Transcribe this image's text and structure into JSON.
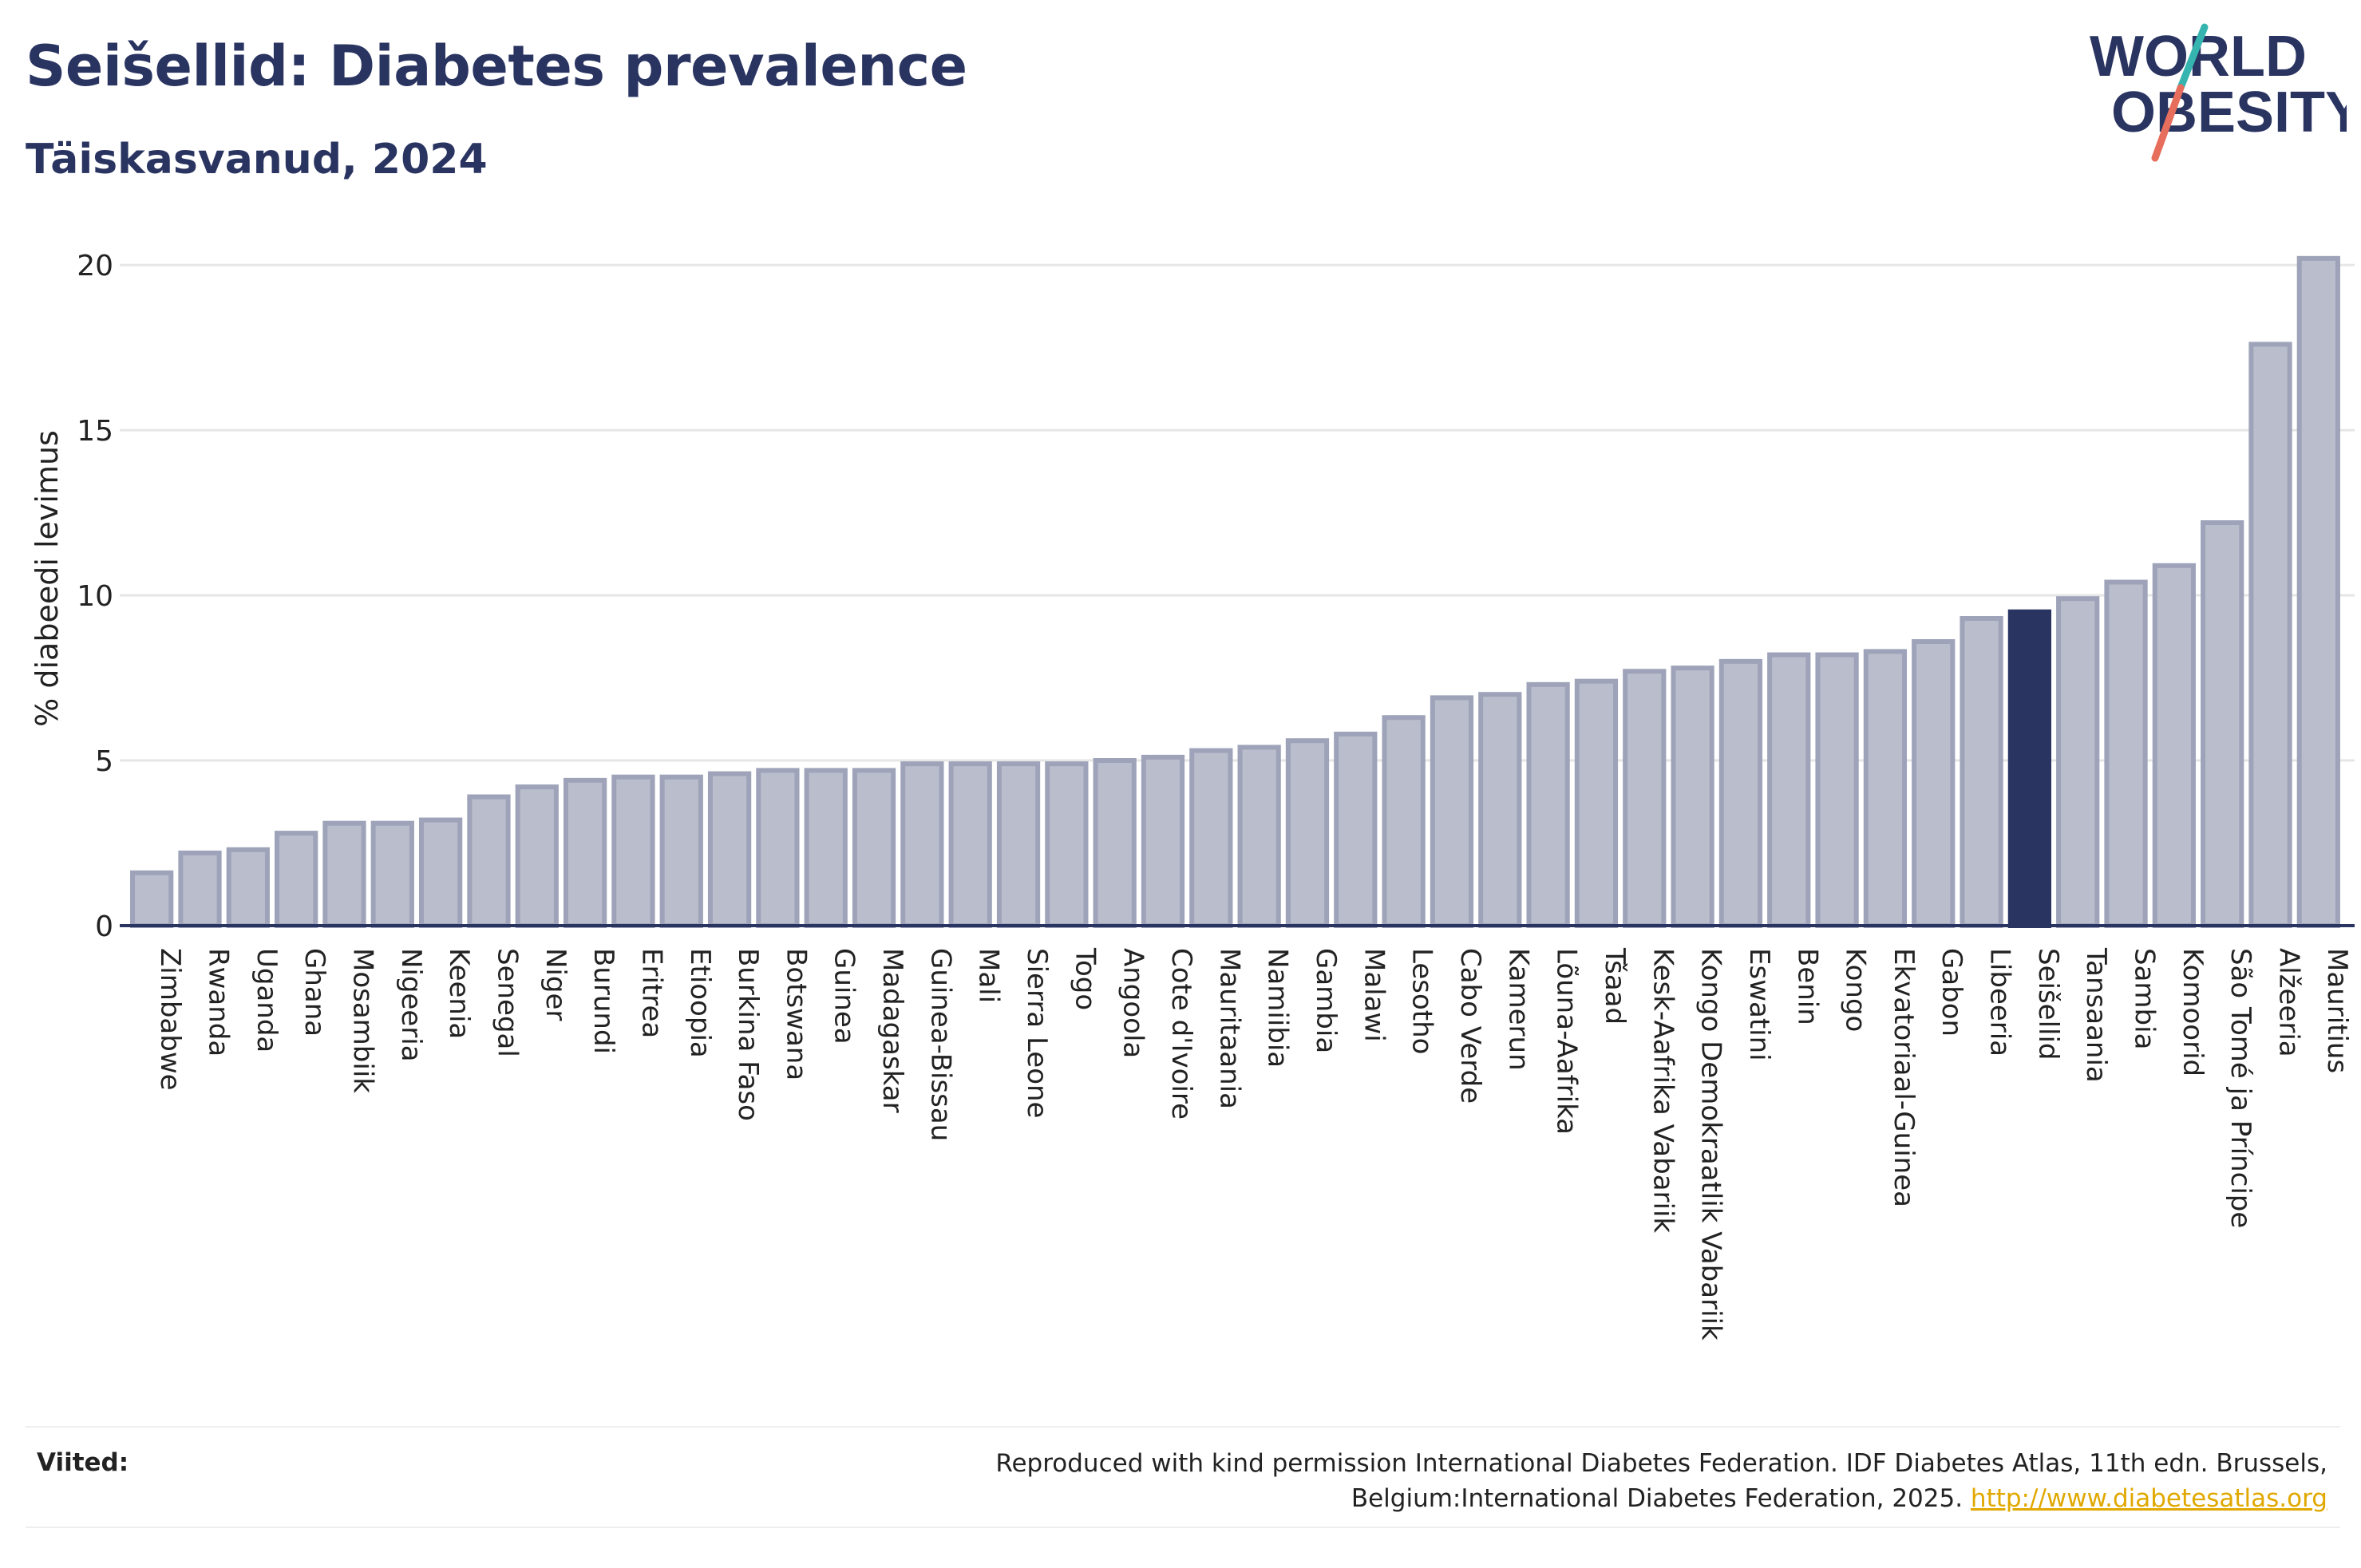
{
  "header": {
    "title": "Seišellid: Diabetes prevalence",
    "subtitle": "Täiskasvanud, 2024"
  },
  "logo": {
    "line1": "WORLD",
    "line2": "OBESITY",
    "icon": "world-obesity-logo"
  },
  "chart_data": {
    "type": "bar",
    "ylabel": "% diabeedi levimus",
    "xlabel": "",
    "ylim": [
      0,
      21.5
    ],
    "yticks": [
      0,
      5,
      10,
      15,
      20
    ],
    "grid": true,
    "highlight": "Seišellid",
    "colors": {
      "bar": "#b9bdcc",
      "bar_border": "#9ea3b9",
      "highlight": "#2a3461",
      "grid": "#e6e6e6",
      "axis": "#2a3461"
    },
    "categories": [
      "Zimbabwe",
      "Rwanda",
      "Uganda",
      "Ghana",
      "Mosambiik",
      "Nigeeria",
      "Keenia",
      "Senegal",
      "Niger",
      "Burundi",
      "Eritrea",
      "Etioopia",
      "Burkina Faso",
      "Botswana",
      "Guinea",
      "Madagaskar",
      "Guinea-Bissau",
      "Mali",
      "Sierra Leone",
      "Togo",
      "Angoola",
      "Cote d'Ivoire",
      "Mauritaania",
      "Namiibia",
      "Gambia",
      "Malawi",
      "Lesotho",
      "Cabo Verde",
      "Kamerun",
      "Lõuna-Aafrika",
      "Tšaad",
      "Kesk-Aafrika Vabariik",
      "Kongo Demokraatlik Vabariik",
      "Eswatini",
      "Benin",
      "Kongo",
      "Ekvatoriaal-Guinea",
      "Gabon",
      "Libeeria",
      "Seišellid",
      "Tansaania",
      "Sambia",
      "Komoorid",
      "São Tomé ja Príncipe",
      "Alžeeria",
      "Mauritius"
    ],
    "values": [
      1.6,
      2.2,
      2.3,
      2.8,
      3.1,
      3.1,
      3.2,
      3.9,
      4.2,
      4.4,
      4.5,
      4.5,
      4.6,
      4.7,
      4.7,
      4.7,
      4.9,
      4.9,
      4.9,
      4.9,
      5.0,
      5.1,
      5.3,
      5.4,
      5.6,
      5.8,
      6.3,
      6.9,
      7.0,
      7.3,
      7.4,
      7.7,
      7.8,
      8.0,
      8.2,
      8.2,
      8.3,
      8.6,
      9.3,
      9.5,
      9.9,
      10.4,
      10.9,
      12.2,
      17.6,
      20.2
    ]
  },
  "footer": {
    "sources_label": "Viited:",
    "sources_text": "Reproduced with kind permission International Diabetes Federation. IDF Diabetes Atlas, 11th edn. Brussels, Belgium:International Diabetes Federation, 2025. ",
    "sources_link": "http://www.diabetesatlas.org"
  }
}
